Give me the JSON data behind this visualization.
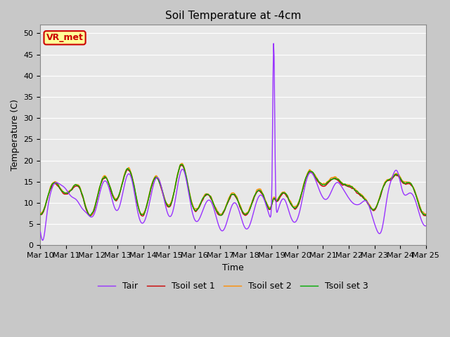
{
  "title": "Soil Temperature at -4cm",
  "xlabel": "Time",
  "ylabel": "Temperature (C)",
  "ylim": [
    0,
    52
  ],
  "yticks": [
    0,
    5,
    10,
    15,
    20,
    25,
    30,
    35,
    40,
    45,
    50
  ],
  "date_labels": [
    "Mar 10",
    "Mar 11",
    "Mar 12",
    "Mar 13",
    "Mar 14",
    "Mar 15",
    "Mar 16",
    "Mar 17",
    "Mar 18",
    "Mar 19",
    "Mar 20",
    "Mar 21",
    "Mar 22",
    "Mar 23",
    "Mar 24",
    "Mar 25"
  ],
  "legend_labels": [
    "Tair",
    "Tsoil set 1",
    "Tsoil set 2",
    "Tsoil set 3"
  ],
  "legend_colors": [
    "#9933FF",
    "#CC0000",
    "#FF8C00",
    "#00AA00"
  ],
  "annotation_text": "VR_met",
  "annotation_bg": "#FFFF99",
  "annotation_border": "#CC0000",
  "plot_bg": "#E8E8E8",
  "grid_color": "#FFFFFF",
  "title_fontsize": 11,
  "axis_fontsize": 9,
  "tick_fontsize": 8
}
